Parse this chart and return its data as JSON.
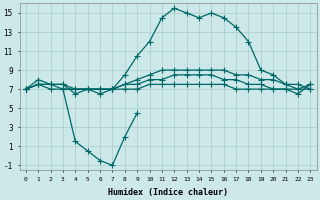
{
  "xlabel": "Humidex (Indice chaleur)",
  "bg_color": "#cce8e8",
  "grid_color": "#aacccc",
  "line_color": "#006868",
  "xlim": [
    -0.5,
    23.5
  ],
  "ylim": [
    -1.5,
    16.0
  ],
  "yticks": [
    -1,
    1,
    3,
    5,
    7,
    9,
    11,
    13,
    15
  ],
  "xticks": [
    0,
    1,
    2,
    3,
    4,
    5,
    6,
    7,
    8,
    9,
    10,
    11,
    12,
    13,
    14,
    15,
    16,
    17,
    18,
    19,
    20,
    21,
    22,
    23
  ],
  "line1_x": [
    0,
    1,
    2,
    3,
    4,
    5,
    6,
    7,
    8,
    9,
    10,
    11,
    12,
    13,
    14,
    15,
    16,
    17,
    18,
    19,
    20,
    21,
    22,
    23
  ],
  "line1_y": [
    7.0,
    8.0,
    7.5,
    7.5,
    6.5,
    7.0,
    6.5,
    7.0,
    8.5,
    10.5,
    12.0,
    14.5,
    15.5,
    15.0,
    14.5,
    15.0,
    14.5,
    13.5,
    12.0,
    9.0,
    8.5,
    7.5,
    7.5,
    7.0
  ],
  "line2_x": [
    0,
    1,
    2,
    3,
    4,
    5,
    6,
    7,
    8,
    9,
    10,
    11,
    12,
    13,
    14,
    15,
    16,
    17,
    18,
    19,
    20,
    21,
    22,
    23
  ],
  "line2_y": [
    7.0,
    7.5,
    7.5,
    7.5,
    7.0,
    7.0,
    7.0,
    7.0,
    7.5,
    8.0,
    8.5,
    9.0,
    9.0,
    9.0,
    9.0,
    9.0,
    9.0,
    8.5,
    8.5,
    8.0,
    8.0,
    7.5,
    7.0,
    7.5
  ],
  "line3_x": [
    0,
    1,
    2,
    3,
    4,
    5,
    6,
    7,
    8,
    9,
    10,
    11,
    12,
    13,
    14,
    15,
    16,
    17,
    18,
    19,
    20,
    21,
    22,
    23
  ],
  "line3_y": [
    7.0,
    7.5,
    7.5,
    7.0,
    7.0,
    7.0,
    7.0,
    7.0,
    7.5,
    7.5,
    8.0,
    8.0,
    8.5,
    8.5,
    8.5,
    8.5,
    8.0,
    8.0,
    7.5,
    7.5,
    7.0,
    7.0,
    7.0,
    7.0
  ],
  "line4_x": [
    0,
    1,
    2,
    3,
    4,
    5,
    6,
    7,
    8,
    9,
    10,
    11,
    12,
    13,
    14,
    15,
    16,
    17,
    18,
    19,
    20,
    21,
    22,
    23
  ],
  "line4_y": [
    7.0,
    7.5,
    7.0,
    7.0,
    7.0,
    7.0,
    7.0,
    7.0,
    7.0,
    7.0,
    7.5,
    7.5,
    7.5,
    7.5,
    7.5,
    7.5,
    7.5,
    7.0,
    7.0,
    7.0,
    7.0,
    7.0,
    6.5,
    7.5
  ],
  "line5_x": [
    3,
    4,
    5,
    6,
    7,
    8,
    9
  ],
  "line5_y": [
    7.0,
    1.5,
    0.5,
    -0.5,
    -1.0,
    2.0,
    4.5
  ]
}
